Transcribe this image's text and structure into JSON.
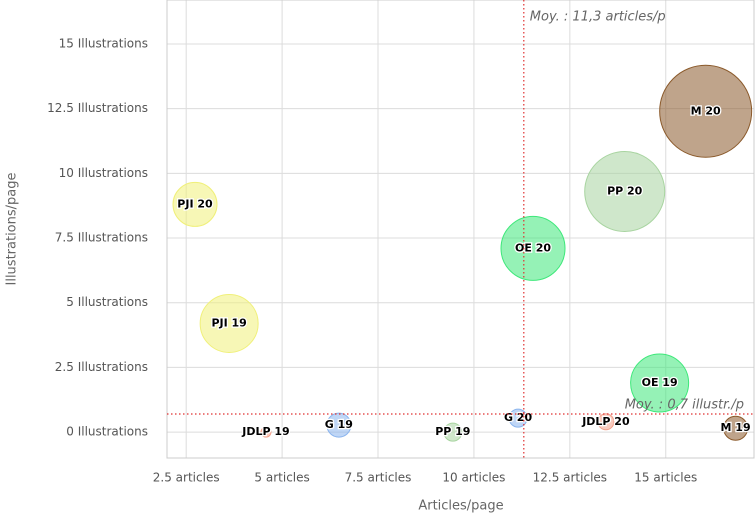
{
  "chart_data": {
    "type": "bubble",
    "x_label": "Articles/page",
    "y_label": "Illustrations/page",
    "xlim": [
      2,
      17.3
    ],
    "ylim": [
      -1,
      16.7
    ],
    "xticks": [
      {
        "value": 2.5,
        "label": "2.5 articles"
      },
      {
        "value": 5,
        "label": "5 articles"
      },
      {
        "value": 7.5,
        "label": "7.5 articles"
      },
      {
        "value": 10,
        "label": "10 articles"
      },
      {
        "value": 12.5,
        "label": "12.5 articles"
      },
      {
        "value": 15,
        "label": "15 articles"
      }
    ],
    "yticks": [
      {
        "value": 0,
        "label": "0 Illustrations"
      },
      {
        "value": 2.5,
        "label": "2.5 Illustrations"
      },
      {
        "value": 5,
        "label": "5 Illustrations"
      },
      {
        "value": 7.5,
        "label": "7.5 Illustrations"
      },
      {
        "value": 10,
        "label": "10 Illustrations"
      },
      {
        "value": 12.5,
        "label": "12.5 Illustrations"
      },
      {
        "value": 15,
        "label": "15 Illustrations"
      }
    ],
    "grid": true,
    "x_plot_line": {
      "value": 11.3,
      "label": "Moy. : 11,3 articles/p",
      "color": "#e03030"
    },
    "y_plot_line": {
      "value": 0.7,
      "label": "Moy. : 0,7 illustr./p",
      "color": "#e03030"
    },
    "points": [
      {
        "name": "PJI 20",
        "x": 2.73,
        "y": 8.8,
        "z": 22,
        "color": "#f0f07a"
      },
      {
        "name": "PJI 19",
        "x": 3.62,
        "y": 4.2,
        "z": 29,
        "color": "#f0f07a"
      },
      {
        "name": "JDLP 19",
        "x": 4.58,
        "y": 0,
        "z": 5,
        "color": "#f4a08a"
      },
      {
        "name": "G 19",
        "x": 6.48,
        "y": 0.27,
        "z": 12,
        "color": "#8ab4ee"
      },
      {
        "name": "PP 19",
        "x": 9.45,
        "y": 0,
        "z": 9,
        "color": "#a8d4a0"
      },
      {
        "name": "G 20",
        "x": 11.15,
        "y": 0.54,
        "z": 9,
        "color": "#8ab4ee"
      },
      {
        "name": "OE 20",
        "x": 11.54,
        "y": 7.1,
        "z": 32,
        "color": "#3ee87a"
      },
      {
        "name": "JDLP 20",
        "x": 13.44,
        "y": 0.4,
        "z": 8,
        "color": "#f4a08a"
      },
      {
        "name": "PP 20",
        "x": 13.93,
        "y": 9.3,
        "z": 40,
        "color": "#a8d4a0"
      },
      {
        "name": "OE 19",
        "x": 14.84,
        "y": 1.9,
        "z": 29,
        "color": "#3ee87a"
      },
      {
        "name": "M 20",
        "x": 16.04,
        "y": 12.4,
        "z": 46,
        "color": "#8b5a2b"
      },
      {
        "name": "M 19",
        "x": 16.82,
        "y": 0.15,
        "z": 12,
        "color": "#8b5a2b"
      }
    ]
  }
}
